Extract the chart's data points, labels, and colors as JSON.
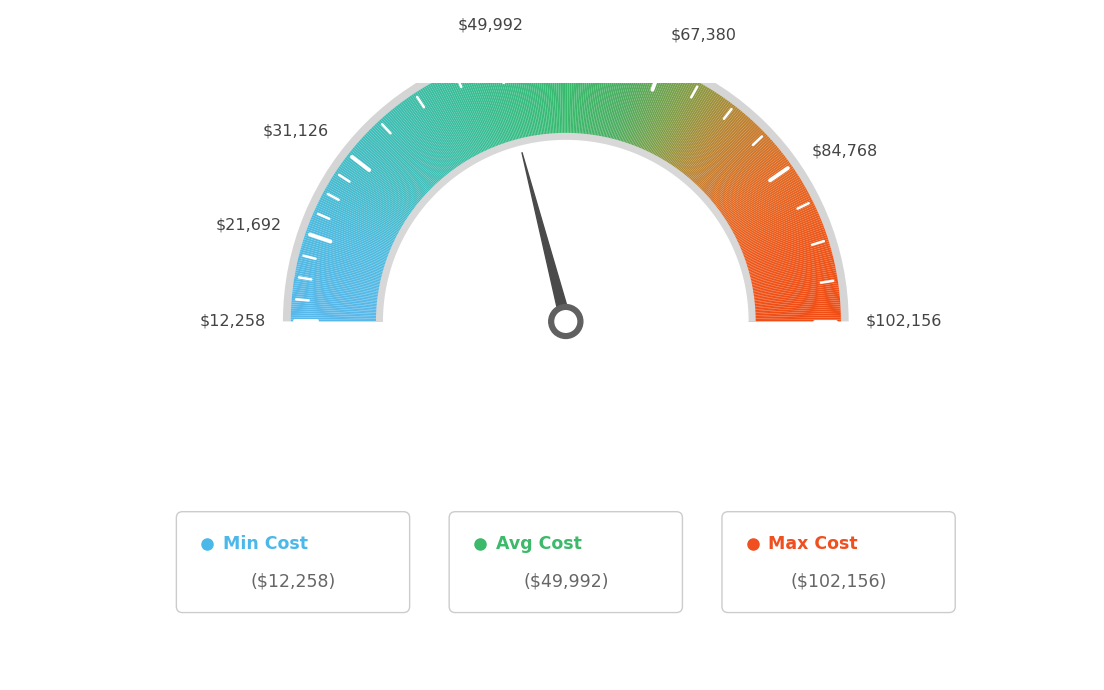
{
  "min_val": 12258,
  "max_val": 102156,
  "avg_val": 49992,
  "label_values": [
    12258,
    21692,
    31126,
    49992,
    67380,
    84768,
    102156
  ],
  "label_texts": [
    "$12,258",
    "$21,692",
    "$31,126",
    "$49,992",
    "$67,380",
    "$84,768",
    "$102,156"
  ],
  "min_label": "Min Cost",
  "avg_label": "Avg Cost",
  "max_label": "Max Cost",
  "min_display": "($12,258)",
  "avg_display": "($49,992)",
  "max_display": "($102,156)",
  "min_color": "#4ab8e8",
  "avg_color": "#3cb96a",
  "max_color": "#f05020",
  "background_color": "#ffffff",
  "color_stops": [
    [
      0.0,
      [
        0.35,
        0.72,
        0.92
      ]
    ],
    [
      0.12,
      [
        0.3,
        0.73,
        0.87
      ]
    ],
    [
      0.25,
      [
        0.25,
        0.74,
        0.72
      ]
    ],
    [
      0.38,
      [
        0.22,
        0.74,
        0.57
      ]
    ],
    [
      0.5,
      [
        0.22,
        0.73,
        0.43
      ]
    ],
    [
      0.58,
      [
        0.3,
        0.68,
        0.38
      ]
    ],
    [
      0.65,
      [
        0.5,
        0.62,
        0.28
      ]
    ],
    [
      0.72,
      [
        0.72,
        0.52,
        0.2
      ]
    ],
    [
      0.8,
      [
        0.88,
        0.42,
        0.14
      ]
    ],
    [
      0.9,
      [
        0.93,
        0.34,
        0.1
      ]
    ],
    [
      1.0,
      [
        0.94,
        0.3,
        0.08
      ]
    ]
  ],
  "tick_major_values": [
    12258,
    21692,
    31126,
    49992,
    67380,
    84768,
    102156
  ],
  "tick_minor_count": 3
}
